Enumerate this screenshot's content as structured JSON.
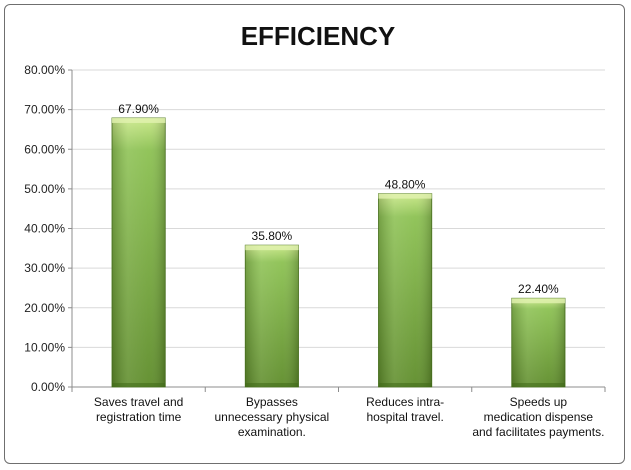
{
  "chart_data": {
    "type": "bar",
    "title": "EFFICIENCY",
    "xlabel": "",
    "ylabel": "",
    "ylim": [
      0,
      80
    ],
    "ytick_values": [
      0,
      10,
      20,
      30,
      40,
      50,
      60,
      70,
      80
    ],
    "ytick_labels": [
      "0.00%",
      "10.00%",
      "20.00%",
      "30.00%",
      "40.00%",
      "50.00%",
      "60.00%",
      "70.00%",
      "80.00%"
    ],
    "grid": true,
    "legend": "none",
    "categories": [
      [
        "Saves travel and",
        "registration time"
      ],
      [
        "Bypasses",
        "unnecessary physical",
        "examination."
      ],
      [
        "Reduces intra-",
        "hospital travel."
      ],
      [
        "Speeds up",
        "medication dispense",
        "and facilitates payments."
      ]
    ],
    "values": [
      67.9,
      35.8,
      48.8,
      22.4
    ],
    "data_labels": [
      "67.90%",
      "35.80%",
      "48.80%",
      "22.40%"
    ],
    "colors": {
      "bar_top": "#c9e887",
      "bar_mid": "#8cc152",
      "bar_bottom": "#5e8c2a",
      "bar_edge": "#4f7a22",
      "grid": "#d9d9d9",
      "axis": "#8c8c8c"
    }
  }
}
